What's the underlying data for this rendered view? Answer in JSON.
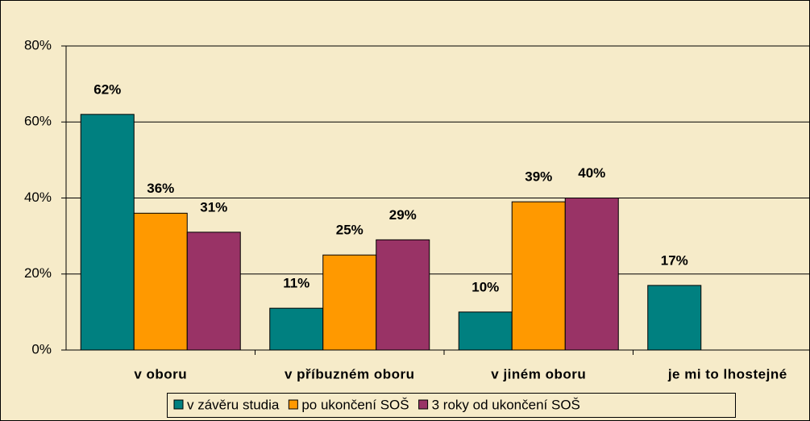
{
  "chart_data": {
    "type": "bar",
    "categories": [
      "v oboru",
      "v příbuzném oboru",
      "v jiném oboru",
      "je mi to lhostejné"
    ],
    "series": [
      {
        "name": "v závěru studia",
        "color": "#008080",
        "values": [
          62,
          11,
          10,
          17
        ],
        "value_labels": [
          "62%",
          "11%",
          "10%",
          "17%"
        ]
      },
      {
        "name": "po ukončení SOŠ",
        "color": "#ff9900",
        "values": [
          36,
          25,
          39,
          null
        ],
        "value_labels": [
          "36%",
          "25%",
          "39%",
          null
        ]
      },
      {
        "name": "3 roky od ukončení SOŠ",
        "color": "#993366",
        "values": [
          31,
          29,
          40,
          null
        ],
        "value_labels": [
          "31%",
          "29%",
          "40%",
          null
        ]
      }
    ],
    "ylim": [
      0,
      80
    ],
    "yticks": [
      {
        "value": 0,
        "label": "0%"
      },
      {
        "value": 20,
        "label": "20%"
      },
      {
        "value": 40,
        "label": "40%"
      },
      {
        "value": 60,
        "label": "60%"
      },
      {
        "value": 80,
        "label": "80%"
      }
    ],
    "grid": true,
    "legend": "bottom"
  }
}
